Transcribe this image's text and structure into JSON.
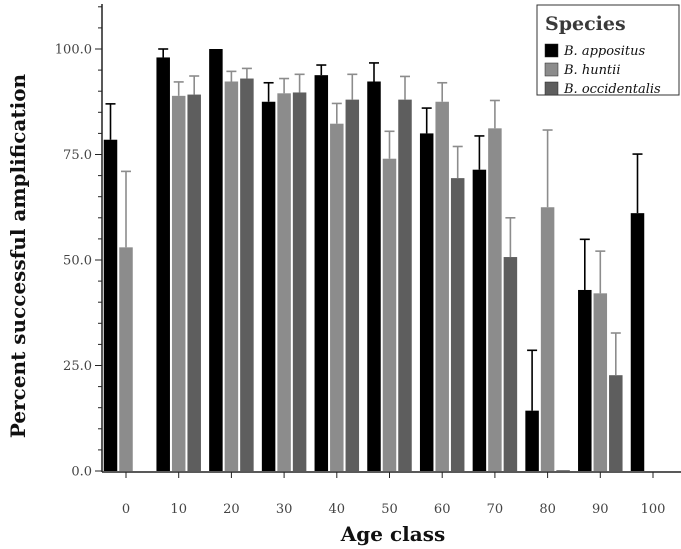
{
  "chart_data": {
    "type": "bar",
    "xlabel": "Age class",
    "ylabel": "Percent successful amplification",
    "categories": [
      "0",
      "10",
      "20",
      "30",
      "40",
      "50",
      "60",
      "70",
      "80",
      "90",
      "100"
    ],
    "ylim": [
      0,
      100
    ],
    "yticks": [
      "0.0",
      "25.0",
      "50.0",
      "75.0",
      "100.0"
    ],
    "legend": {
      "title": "Species",
      "position": "top-right"
    },
    "colors": {
      "B. appositus": "#000000",
      "B. huntii": "#8c8c8c",
      "B. occidentalis": "#5e5e5e",
      "error_bar_appositus": "#000000",
      "error_bar_other": "#8c8c8c"
    },
    "series": [
      {
        "name": "B. appositus",
        "values": [
          78.5,
          98,
          100,
          87.5,
          93.8,
          92.3,
          80,
          71.4,
          14.3,
          42.9,
          61.1
        ],
        "errors": [
          8.5,
          2,
          0,
          4.5,
          2.4,
          4.4,
          6,
          8,
          14.3,
          12,
          14
        ]
      },
      {
        "name": "B. huntii",
        "values": [
          53,
          88.9,
          92.3,
          89.5,
          82.3,
          74,
          87.5,
          81.2,
          62.5,
          42.1,
          null
        ],
        "errors": [
          18,
          3.3,
          2.4,
          3.5,
          4.8,
          6.5,
          4.5,
          6.6,
          18.3,
          10,
          null
        ]
      },
      {
        "name": "B. occidentalis",
        "values": [
          null,
          89.2,
          93,
          89.7,
          88,
          88,
          69.4,
          50.7,
          0,
          22.7,
          null
        ],
        "errors": [
          null,
          4.4,
          2.4,
          4.3,
          6,
          5.5,
          7.5,
          9.3,
          0,
          10,
          null
        ]
      }
    ]
  }
}
